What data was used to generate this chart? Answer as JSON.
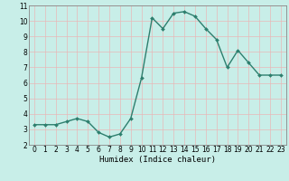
{
  "x": [
    0,
    1,
    2,
    3,
    4,
    5,
    6,
    7,
    8,
    9,
    10,
    11,
    12,
    13,
    14,
    15,
    16,
    17,
    18,
    19,
    20,
    21,
    22,
    23
  ],
  "y": [
    3.3,
    3.3,
    3.3,
    3.5,
    3.7,
    3.5,
    2.8,
    2.5,
    2.7,
    3.7,
    6.3,
    10.2,
    9.5,
    10.5,
    10.6,
    10.3,
    9.5,
    8.8,
    7.0,
    8.1,
    7.3,
    6.5,
    6.5,
    6.5
  ],
  "line_color": "#2d7f6e",
  "marker": "D",
  "marker_size": 2.0,
  "background_color": "#c8eee8",
  "grid_major_color": "#e8b8b8",
  "grid_minor_color": "#e8b8b8",
  "xlabel": "Humidex (Indice chaleur)",
  "xlim": [
    -0.5,
    23.5
  ],
  "ylim": [
    2,
    11
  ],
  "yticks": [
    2,
    3,
    4,
    5,
    6,
    7,
    8,
    9,
    10,
    11
  ],
  "xticks": [
    0,
    1,
    2,
    3,
    4,
    5,
    6,
    7,
    8,
    9,
    10,
    11,
    12,
    13,
    14,
    15,
    16,
    17,
    18,
    19,
    20,
    21,
    22,
    23
  ],
  "xlabel_fontsize": 6.5,
  "tick_fontsize": 5.5,
  "line_width": 1.0
}
